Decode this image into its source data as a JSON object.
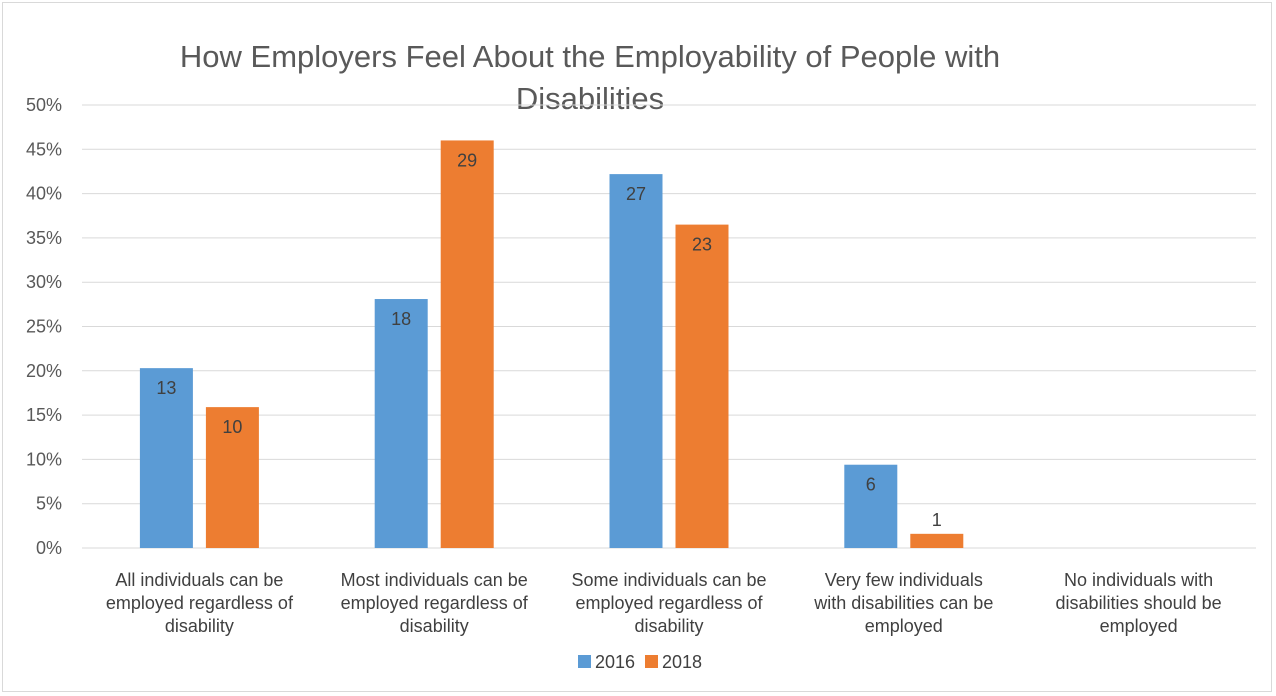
{
  "chart_data": {
    "type": "bar",
    "title": "How Employers Feel About the Employability of People with Disabilities",
    "categories": [
      [
        "All individuals can be",
        "employed regardless of",
        "disability"
      ],
      [
        "Most individuals can be",
        "employed regardless of",
        "disability"
      ],
      [
        "Some individuals can be",
        "employed regardless of",
        "disability"
      ],
      [
        "Very few individuals",
        "with disabilities can be",
        "employed"
      ],
      [
        "No individuals with",
        "disabilities should be",
        "employed"
      ]
    ],
    "series": [
      {
        "name": "2016",
        "color": "#5b9bd5",
        "values": [
          0.203,
          0.281,
          0.422,
          0.094,
          0
        ],
        "labels": [
          "13",
          "18",
          "27",
          "6",
          ""
        ]
      },
      {
        "name": "2018",
        "color": "#ed7d31",
        "values": [
          0.159,
          0.46,
          0.365,
          0.016,
          0
        ],
        "labels": [
          "10",
          "29",
          "23",
          "1",
          ""
        ]
      }
    ],
    "ylim": [
      0,
      0.5
    ],
    "yticks": [
      "0%",
      "5%",
      "10%",
      "15%",
      "20%",
      "25%",
      "30%",
      "35%",
      "40%",
      "45%",
      "50%"
    ],
    "grid": true,
    "legend": "bottom"
  }
}
